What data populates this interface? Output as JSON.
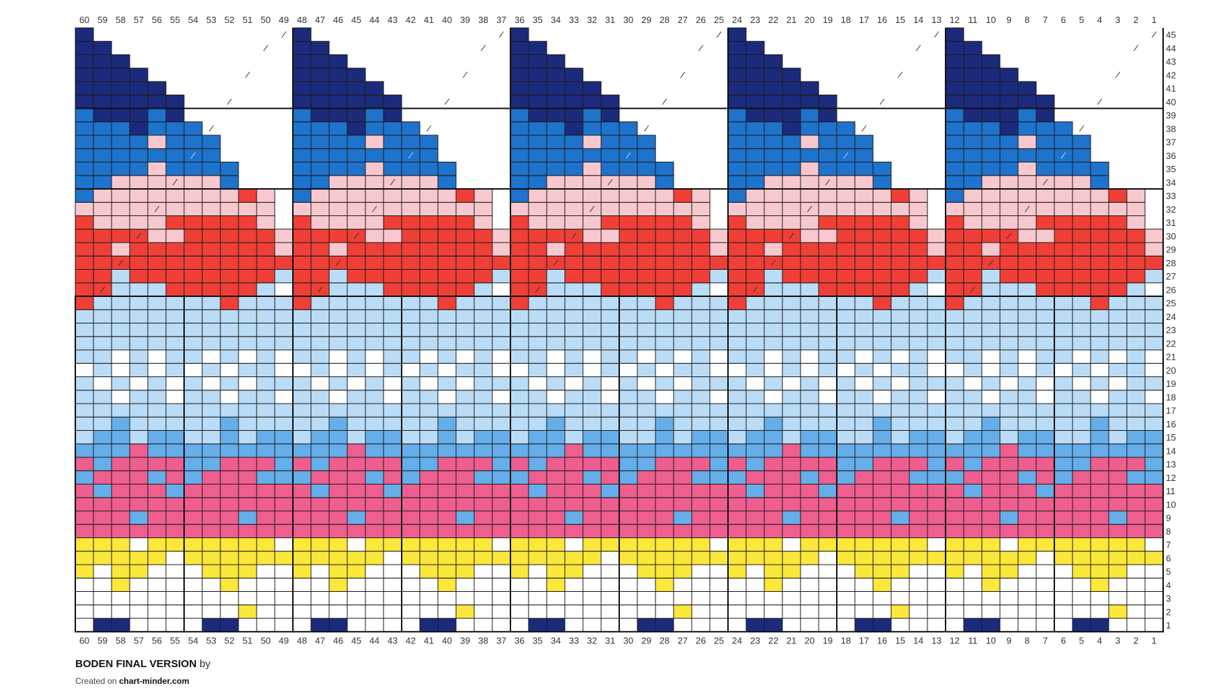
{
  "chart": {
    "title": "BODEN FINAL VERSION",
    "by_label": "by",
    "credit_prefix": "Created on",
    "credit_site": "chart-minder.com",
    "columns": 60,
    "rows": 45,
    "column_numbers": [
      60,
      59,
      58,
      57,
      56,
      55,
      54,
      53,
      52,
      51,
      50,
      49,
      48,
      47,
      46,
      45,
      44,
      43,
      42,
      41,
      40,
      39,
      38,
      37,
      36,
      35,
      34,
      33,
      32,
      31,
      30,
      29,
      28,
      27,
      26,
      25,
      24,
      23,
      22,
      21,
      20,
      19,
      18,
      17,
      16,
      15,
      14,
      13,
      12,
      11,
      10,
      9,
      8,
      7,
      6,
      5,
      4,
      3,
      2,
      1
    ],
    "row_numbers": [
      45,
      44,
      43,
      42,
      41,
      40,
      39,
      38,
      37,
      36,
      35,
      34,
      33,
      32,
      31,
      30,
      29,
      28,
      27,
      26,
      25,
      24,
      23,
      22,
      21,
      20,
      19,
      18,
      17,
      16,
      15,
      14,
      13,
      12,
      11,
      10,
      9,
      8,
      7,
      6,
      5,
      4,
      3,
      2,
      1
    ],
    "legend": {
      "N": {
        "name": "navy",
        "color": "#1c2a7c"
      },
      "B": {
        "name": "blue",
        "color": "#1e73cc"
      },
      "S": {
        "name": "sky blue",
        "color": "#65aee9"
      },
      "L": {
        "name": "light blue",
        "color": "#badcf6"
      },
      "P": {
        "name": "pale pink",
        "color": "#f8c8cf"
      },
      "R": {
        "name": "red",
        "color": "#ef3f37"
      },
      "M": {
        "name": "magenta pink",
        "color": "#ee5e8f"
      },
      "Y": {
        "name": "yellow",
        "color": "#fce73b"
      },
      "W": {
        "name": "white",
        "color": "#ffffff"
      },
      "x": {
        "name": "no stitch",
        "color": "none"
      }
    },
    "decrease_symbol": "/",
    "repeat_width": 12,
    "repeat_rows_bottom_to_top": [
      "WNNWWWWNNWWW",
      "WWWWWWWWWYWW",
      "WWWWWWWWWWWW",
      "WWYWWWWWYWWW",
      "YWYYWWWYYYWW",
      "YYYYYWYYYYYY",
      "YYYWYYYYYYYW",
      "MMMMMMMMMMMM",
      "MMMSMMMMMSMM",
      "MMMMMMMMMMMM",
      "MSMMMSMMMMMM",
      "SMMMSMSMMMSS",
      "MSMMMMSSMMMS",
      "SSSMSSSSSSSS",
      "LSSLSSLLSLSS",
      "LLSLLLLLSLLL",
      "LLLLLLLLLLLL",
      "LLWLLWLLWLLW",
      "LWLWLWLWLWLL",
      "WLWLWLWLWLLW",
      "LLWLWLLWLWLW",
      "LLLLLLLLLLLL",
      "LLLLLLLLLLLL",
      "LLLLLLLLLLLL",
      "RLLLLLLLRLLL",
      "RRLLLRRRRRLx",
      "RRLRRRRRRRRL",
      "RRRRRRRRRRRR",
      "RRPRRRRRRRRP",
      "RRRRPPRRRRRP",
      "RPPPPRRRRRPx",
      "PPPPPPPPPPPx",
      "BPPPPPPPPRPx",
      "BBPPPPPPBxxx",
      "BBBBPBBBBxxx",
      "BBBBBBBBxxxx",
      "BBBBPBBBxxxx",
      "BBBNBBBxxxxx",
      "BNNNBNxxxxxx",
      "NNNNNNxxxxxx",
      "NNNNNxxxxxxx",
      "NNNNxxxxxxxx",
      "NNNxxxxxxxxx",
      "NNxxxxxxxxxx",
      "Nxxxxxxxxxxx"
    ],
    "decrease_marks_per_repeat": [
      {
        "row": 26,
        "stitch": 11
      },
      {
        "row": 28,
        "stitch": 10
      },
      {
        "row": 30,
        "stitch": 9
      },
      {
        "row": 32,
        "stitch": 8
      },
      {
        "row": 34,
        "stitch": 7
      },
      {
        "row": 36,
        "stitch": 6
      },
      {
        "row": 38,
        "stitch": 5
      },
      {
        "row": 40,
        "stitch": 4
      },
      {
        "row": 42,
        "stitch": 3
      },
      {
        "row": 44,
        "stitch": 2
      },
      {
        "row": 45,
        "stitch": 1
      }
    ]
  }
}
